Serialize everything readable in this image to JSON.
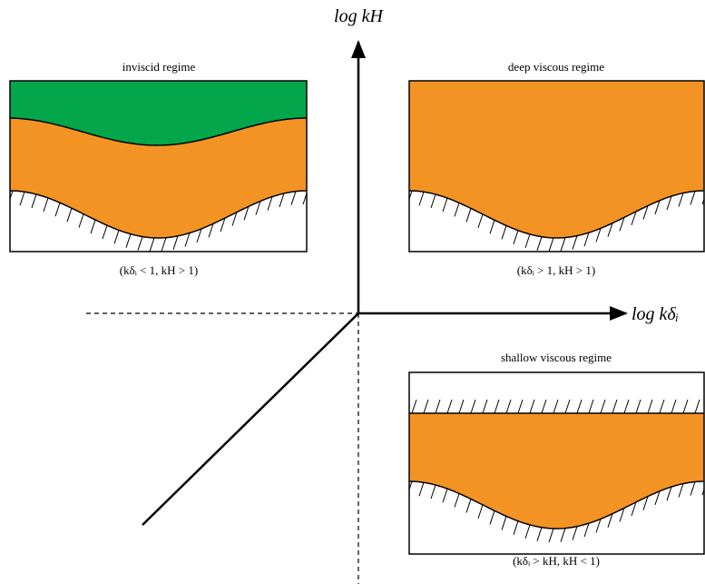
{
  "axes": {
    "y_label": "log kH",
    "x_label": "log kδᵢ"
  },
  "panels": [
    {
      "title": "inviscid regime",
      "condition": "(kδᵢ < 1, kH > 1)"
    },
    {
      "title": "deep viscous regime",
      "condition": "(kδᵢ > 1, kH > 1)"
    },
    {
      "title": "shallow viscous regime",
      "condition": "(kδᵢ > kH, kH < 1)"
    }
  ]
}
